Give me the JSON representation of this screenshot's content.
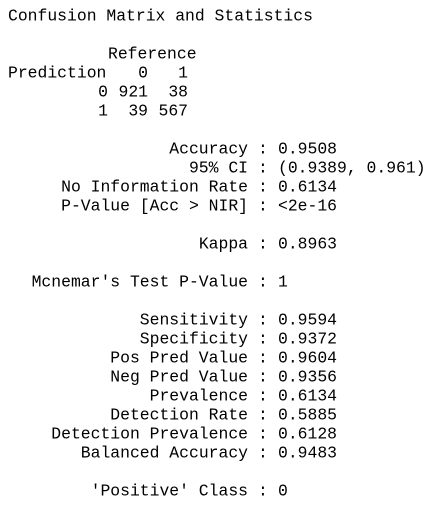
{
  "header": {
    "title": "Confusion Matrix and Statistics"
  },
  "matrix": {
    "reference_label": "Reference",
    "prediction_label": "Prediction",
    "columns": [
      "0",
      "1"
    ],
    "rows": [
      {
        "label": "0",
        "values": [
          921,
          38
        ]
      },
      {
        "label": "1",
        "values": [
          39,
          567
        ]
      }
    ]
  },
  "separator": ":",
  "statistics": [
    [
      {
        "label": "Accuracy",
        "value": "0.9508"
      },
      {
        "label": "95% CI",
        "value": "(0.9389, 0.961)"
      },
      {
        "label": "No Information Rate",
        "value": "0.6134"
      },
      {
        "label": "P-Value [Acc > NIR]",
        "value": "<2e-16"
      }
    ],
    [
      {
        "label": "Kappa",
        "value": "0.8963"
      }
    ],
    [
      {
        "label": "Mcnemar's Test P-Value",
        "value": "1"
      }
    ],
    [
      {
        "label": "Sensitivity",
        "value": "0.9594"
      },
      {
        "label": "Specificity",
        "value": "0.9372"
      },
      {
        "label": "Pos Pred Value",
        "value": "0.9604"
      },
      {
        "label": "Neg Pred Value",
        "value": "0.9356"
      },
      {
        "label": "Prevalence",
        "value": "0.6134"
      },
      {
        "label": "Detection Rate",
        "value": "0.5885"
      },
      {
        "label": "Detection Prevalence",
        "value": "0.6128"
      },
      {
        "label": "Balanced Accuracy",
        "value": "0.9483"
      }
    ],
    [
      {
        "label": "'Positive' Class",
        "value": "0"
      }
    ]
  ]
}
